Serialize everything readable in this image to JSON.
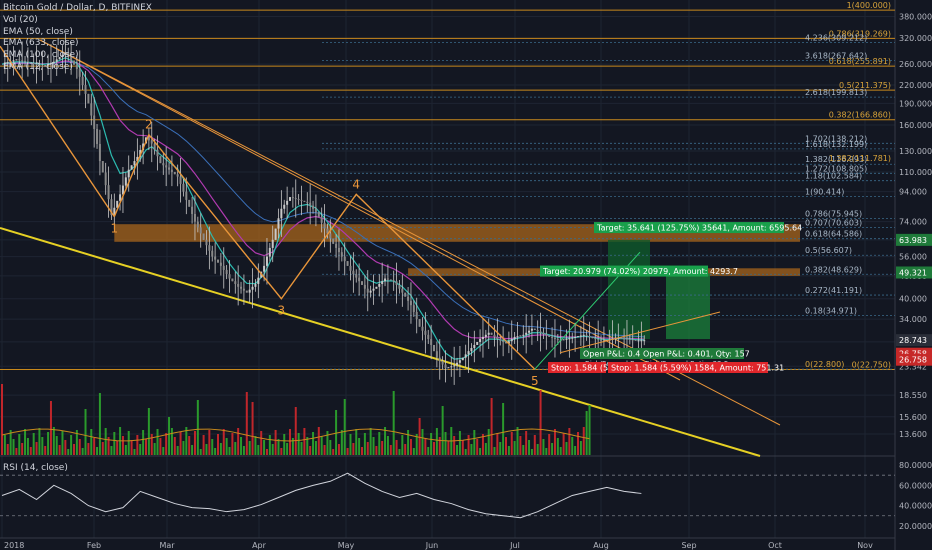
{
  "header": {
    "title": "Bitcoin Gold / Dollar, D, BITFINEX",
    "indicators": [
      "Vol (20)",
      "EMA (50, close)",
      "EMA (633, close)",
      "EMA (100, close)",
      "EMA (12, close)"
    ]
  },
  "colors": {
    "background": "#131722",
    "grid": "#1e2432",
    "axis_text": "#b2b5be",
    "candle_up": "#c9c9c9",
    "candle_down": "#c9c9c9",
    "vol_up": "#2a9a2c",
    "vol_down": "#c0262b",
    "fib_line": "#c8891c",
    "fib_text_orange": "#d9a43a",
    "fib_text_blue": "#a9b8c8",
    "trendline_yellow": "#e6d024",
    "wave_orange": "#e8953a",
    "ema12": "#2cbbb0",
    "ema50": "#b03ab0",
    "ema100": "#3a6fb8",
    "ema_orange": "#c8891c",
    "target_green": "#19a04b",
    "stop_red": "#e0262b",
    "price_tag_dark": "#2a2e39",
    "price_tag_green": "#1f7a3a",
    "price_tag_red": "#c62828"
  },
  "chart_data": [
    {
      "type": "candlestick",
      "title": "Bitcoin Gold / Dollar, D, BITFINEX",
      "yscale": "log",
      "ylim": [
        11.5,
        420
      ],
      "x_ticks": [
        "2018",
        "Feb",
        "Mar",
        "Apr",
        "May",
        "Jun",
        "Jul",
        "Aug",
        "Sep",
        "Oct",
        "Nov"
      ],
      "y_ticks": [
        13.6,
        15.6,
        18.55,
        23.342,
        28.342,
        34.0,
        40.0,
        48.0,
        56.0,
        64.0,
        74.0,
        94.0,
        110.0,
        130.0,
        160.0,
        190.0,
        220.0,
        260.0,
        320.0,
        380.0
      ],
      "y_tick_labels": [
        "13.600",
        "15.600",
        "18.550",
        "23.342",
        "28.342",
        "34.000",
        "40.000",
        "48.000",
        "56.000",
        "64.000",
        "74.000",
        "94.000",
        "110.000",
        "130.000",
        "160.000",
        "190.000",
        "220.000",
        "260.000",
        "320.000",
        "380.000"
      ],
      "price_tags": [
        {
          "label": "63.983",
          "value": 63.983,
          "style": "green"
        },
        {
          "label": "49.321",
          "value": 49.321,
          "style": "green"
        },
        {
          "label": "28.743",
          "value": 28.743,
          "style": "dark"
        },
        {
          "label": "26.758",
          "value": 25.8,
          "style": "red"
        },
        {
          "label": "26.758",
          "value": 24.6,
          "style": "red"
        }
      ],
      "close_series": {
        "days": [
          0,
          5,
          10,
          14,
          18,
          22,
          26,
          30,
          34,
          38,
          41,
          44,
          47,
          50,
          52,
          55,
          58,
          61,
          64,
          67,
          70,
          73,
          76,
          79,
          82,
          85,
          88,
          91,
          94,
          97,
          100,
          103,
          106,
          109,
          112,
          115,
          118,
          121,
          124,
          127,
          130,
          133,
          136,
          139,
          142,
          145,
          148,
          151,
          154,
          157,
          160,
          163,
          166,
          169,
          172,
          175,
          178,
          181,
          184,
          187,
          190,
          193,
          196,
          199,
          202,
          205,
          208,
          211,
          214,
          217,
          220,
          223
        ],
        "values": [
          260,
          270,
          262,
          255,
          265,
          285,
          250,
          190,
          120,
          78,
          92,
          112,
          124,
          145,
          138,
          118,
          112,
          106,
          88,
          74,
          64,
          56,
          52,
          47,
          44,
          42,
          45,
          52,
          64,
          82,
          90,
          88,
          86,
          80,
          70,
          62,
          56,
          50,
          46,
          42,
          44,
          47,
          46,
          42,
          38,
          32,
          29,
          25,
          23,
          23.5,
          25,
          27,
          29,
          30.5,
          29,
          28,
          29.5,
          30,
          31.5,
          30.5,
          29.5,
          28.8,
          29,
          29.5,
          30,
          29.2,
          28.5,
          28.9,
          29.3,
          29,
          28.7,
          28.74
        ]
      },
      "wave_points": [
        {
          "label": "1",
          "day": 39,
          "value": 77
        },
        {
          "label": "2",
          "day": 51,
          "value": 148
        },
        {
          "label": "3",
          "day": 97,
          "value": 40
        },
        {
          "label": "4",
          "day": 123,
          "value": 92
        },
        {
          "label": "5",
          "day": 185,
          "value": 22.8
        }
      ],
      "fib_left": [
        {
          "label": "1(400.000)",
          "value": 400
        },
        {
          "label": "0.786(319.269)",
          "value": 319.269
        },
        {
          "label": "0.618(255.891)",
          "value": 255.891
        },
        {
          "label": "0.5(211.375)",
          "value": 211.375
        },
        {
          "label": "0.382(166.860)",
          "value": 166.86
        },
        {
          "label": "0(22.750)",
          "value": 22.75
        }
      ],
      "fib_right": [
        {
          "label": "4.236(309.212)",
          "value": 309.212
        },
        {
          "label": "3.618(267.642)",
          "value": 267.642
        },
        {
          "label": "2.618(199.813)",
          "value": 199.813
        },
        {
          "label": "1.702(138.212)",
          "value": 138.212
        },
        {
          "label": "1.618(132.199)",
          "value": 132.199
        },
        {
          "label": "1.382(116.993)",
          "value": 116.993
        },
        {
          "label": "1.272(108.805)",
          "value": 108.805
        },
        {
          "label": "1.18(102.584)",
          "value": 102.584
        },
        {
          "label": "1(90.414)",
          "value": 90.414
        },
        {
          "label": "0.786(75.945)",
          "value": 75.945
        },
        {
          "label": "0.707(70.603)",
          "value": 70.603
        },
        {
          "label": "0.618(64.586)",
          "value": 64.586
        },
        {
          "label": "0.5(56.607)",
          "value": 56.607
        },
        {
          "label": "0.382(48.629)",
          "value": 48.629
        },
        {
          "label": "0.272(41.191)",
          "value": 41.191
        },
        {
          "label": "0.18(34.971)",
          "value": 34.971
        },
        {
          "label": "0(22.800)",
          "value": 22.8
        }
      ],
      "extra_fib_label": "1.382(111.781)",
      "zones": [
        {
          "from": 63.0,
          "to": 72.5,
          "day_start": 39
        },
        {
          "from": 48.0,
          "to": 51.0,
          "day_start": 141
        }
      ],
      "target_labels": [
        "Target: 35.641 (125.75%) 35641, Amount: 6595.64",
        "Target: 20.979 (74.02%) 20979, Amount: 4293.7"
      ],
      "open_labels": [
        "Open P&L: 0.40",
        "Open P&L: 0.401, Qty: 157"
      ],
      "rr_labels": [
        "Risk/Reward R",
        "Risk/Reward Ratio: 22.5"
      ],
      "stop_labels": [
        "Stop: 1.584 (5.",
        "Stop: 1.584 (5.59%) 1584, Amount: 751.31"
      ]
    },
    {
      "type": "bar",
      "title": "Vol (20)",
      "note": "volume histogram"
    },
    {
      "type": "line",
      "title": "RSI (14, close)",
      "ylim": [
        10,
        85
      ],
      "y_ticks": [
        20,
        40,
        60,
        80
      ],
      "y_tick_labels": [
        "20.0000",
        "40.0000",
        "60.0000",
        "80.0000"
      ],
      "bands": [
        30,
        70
      ],
      "days": [
        0,
        6,
        12,
        18,
        24,
        30,
        36,
        42,
        48,
        54,
        60,
        66,
        72,
        78,
        84,
        90,
        96,
        102,
        108,
        114,
        120,
        126,
        132,
        138,
        144,
        150,
        156,
        162,
        168,
        174,
        180,
        186,
        192,
        198,
        204,
        210,
        216,
        222
      ],
      "values": [
        50,
        56,
        46,
        60,
        52,
        40,
        34,
        38,
        54,
        48,
        42,
        38,
        37,
        34,
        36,
        41,
        48,
        55,
        60,
        64,
        72,
        62,
        54,
        48,
        52,
        46,
        42,
        36,
        32,
        30,
        28,
        34,
        42,
        50,
        54,
        58,
        54,
        52
      ]
    }
  ]
}
